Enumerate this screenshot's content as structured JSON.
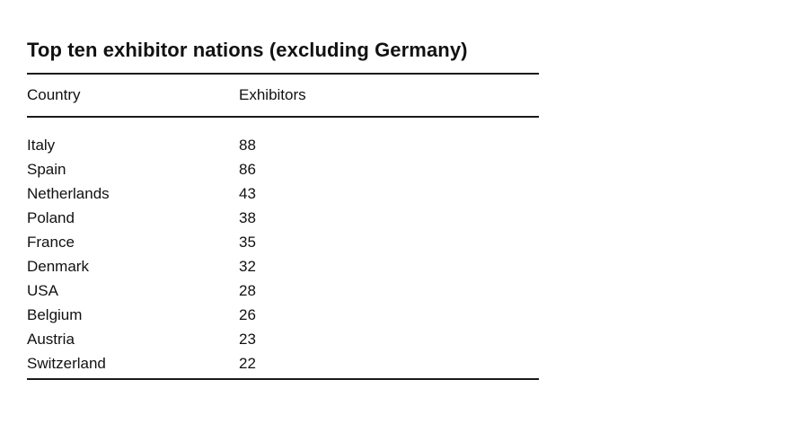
{
  "table": {
    "title": "Top ten exhibitor nations (excluding Germany)",
    "columns": [
      "Country",
      "Exhibitors"
    ],
    "rows": [
      {
        "country": "Italy",
        "exhibitors": "88"
      },
      {
        "country": "Spain",
        "exhibitors": "86"
      },
      {
        "country": "Netherlands",
        "exhibitors": "43"
      },
      {
        "country": "Poland",
        "exhibitors": "38"
      },
      {
        "country": "France",
        "exhibitors": "35"
      },
      {
        "country": "Denmark",
        "exhibitors": "32"
      },
      {
        "country": "USA",
        "exhibitors": "28"
      },
      {
        "country": "Belgium",
        "exhibitors": "26"
      },
      {
        "country": "Austria",
        "exhibitors": "23"
      },
      {
        "country": "Switzerland",
        "exhibitors": "22"
      }
    ]
  }
}
